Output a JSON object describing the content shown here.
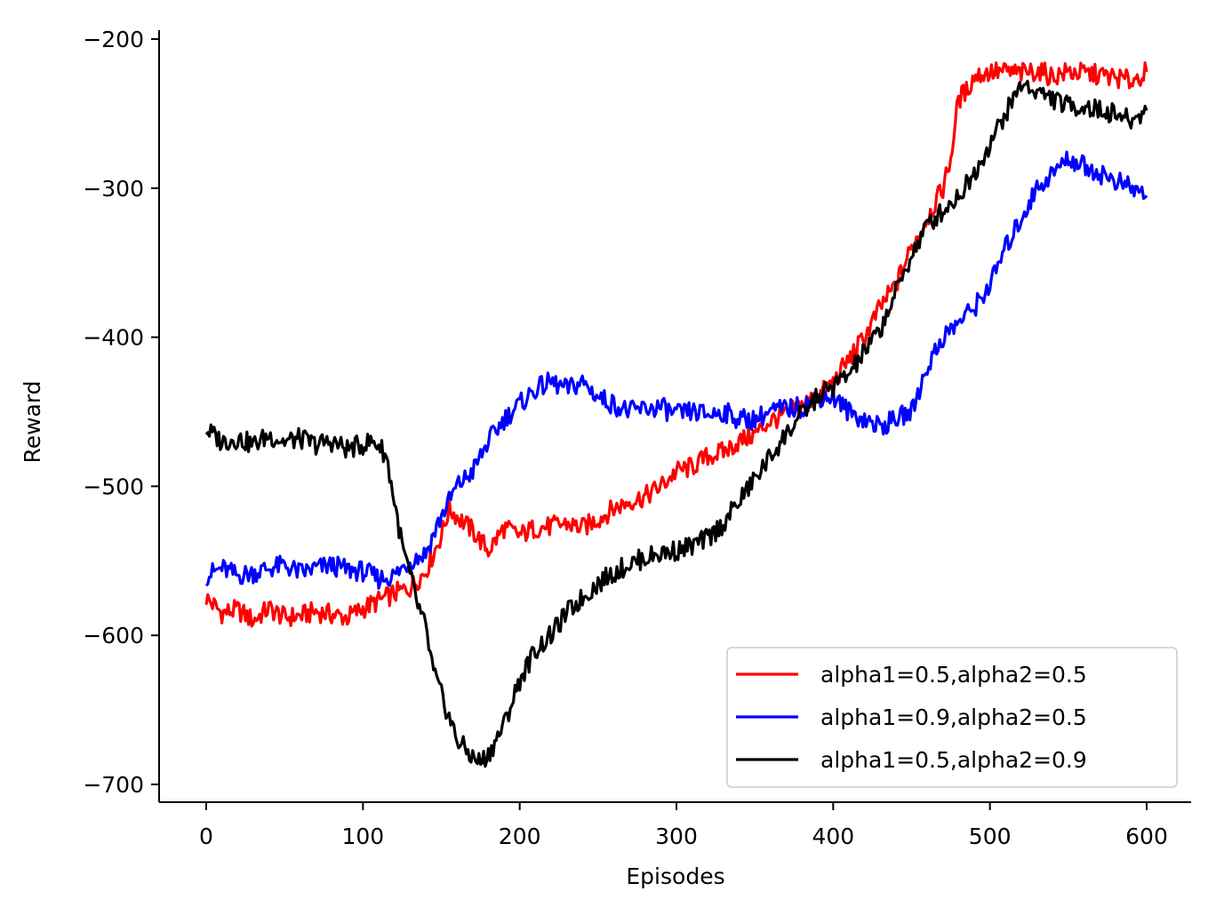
{
  "chart_data": {
    "type": "line",
    "title": "",
    "xlabel": "Episodes",
    "ylabel": "Reward",
    "xlim": [
      -30,
      630
    ],
    "ylim": [
      -712,
      -197
    ],
    "xticks": [
      0,
      100,
      200,
      300,
      400,
      500,
      600
    ],
    "yticks": [
      -200,
      -300,
      -400,
      -500,
      -600,
      -700
    ],
    "xtick_labels": [
      "0",
      "100",
      "200",
      "300",
      "400",
      "500",
      "600"
    ],
    "ytick_labels": [
      "−200",
      "−300",
      "−400",
      "−500",
      "−600",
      "−700"
    ],
    "grid": false,
    "legend_position": "bottom-right",
    "series": [
      {
        "name": "alpha1=0.5,alpha2=0.5",
        "color": "#ff0000",
        "x": [
          0,
          10,
          20,
          30,
          40,
          50,
          60,
          70,
          80,
          90,
          100,
          110,
          120,
          130,
          140,
          150,
          155,
          160,
          170,
          180,
          190,
          200,
          210,
          220,
          230,
          240,
          250,
          260,
          270,
          280,
          290,
          300,
          310,
          320,
          330,
          340,
          350,
          360,
          370,
          380,
          390,
          400,
          410,
          420,
          430,
          440,
          450,
          460,
          470,
          475,
          480,
          485,
          490,
          500,
          510,
          520,
          530,
          540,
          550,
          560,
          570,
          580,
          590,
          600
        ],
        "y": [
          -575,
          -585,
          -583,
          -590,
          -582,
          -588,
          -587,
          -584,
          -586,
          -588,
          -582,
          -577,
          -572,
          -568,
          -557,
          -533,
          -515,
          -520,
          -530,
          -543,
          -528,
          -533,
          -528,
          -527,
          -525,
          -528,
          -522,
          -515,
          -510,
          -507,
          -500,
          -490,
          -487,
          -480,
          -477,
          -470,
          -465,
          -456,
          -452,
          -445,
          -440,
          -430,
          -415,
          -400,
          -380,
          -365,
          -340,
          -320,
          -300,
          -280,
          -240,
          -235,
          -225,
          -222,
          -222,
          -223,
          -221,
          -225,
          -222,
          -223,
          -224,
          -226,
          -228,
          -222
        ]
      },
      {
        "name": "alpha1=0.9,alpha2=0.5",
        "color": "#0000ff",
        "x": [
          0,
          10,
          20,
          30,
          40,
          50,
          60,
          70,
          80,
          90,
          100,
          110,
          120,
          130,
          140,
          150,
          160,
          170,
          180,
          190,
          200,
          210,
          220,
          230,
          240,
          250,
          260,
          270,
          280,
          290,
          300,
          310,
          320,
          330,
          340,
          350,
          360,
          370,
          380,
          390,
          400,
          410,
          420,
          430,
          440,
          450,
          460,
          470,
          480,
          490,
          500,
          510,
          520,
          530,
          540,
          550,
          560,
          570,
          580,
          590,
          600
        ],
        "y": [
          -560,
          -555,
          -560,
          -558,
          -555,
          -553,
          -558,
          -555,
          -553,
          -556,
          -557,
          -562,
          -560,
          -550,
          -545,
          -520,
          -500,
          -490,
          -470,
          -455,
          -445,
          -435,
          -430,
          -435,
          -430,
          -440,
          -445,
          -450,
          -448,
          -447,
          -452,
          -450,
          -452,
          -450,
          -455,
          -455,
          -450,
          -448,
          -447,
          -440,
          -440,
          -450,
          -455,
          -460,
          -455,
          -450,
          -420,
          -400,
          -390,
          -380,
          -365,
          -340,
          -320,
          -300,
          -290,
          -280,
          -285,
          -290,
          -295,
          -300,
          -305
        ]
      },
      {
        "name": "alpha1=0.5,alpha2=0.9",
        "color": "#000000",
        "x": [
          0,
          10,
          20,
          30,
          40,
          50,
          60,
          70,
          80,
          90,
          100,
          105,
          110,
          115,
          120,
          125,
          130,
          135,
          140,
          145,
          150,
          160,
          170,
          175,
          180,
          190,
          200,
          210,
          220,
          230,
          240,
          250,
          260,
          270,
          280,
          290,
          300,
          310,
          320,
          330,
          340,
          350,
          360,
          370,
          380,
          390,
          400,
          410,
          420,
          430,
          440,
          450,
          460,
          470,
          480,
          490,
          500,
          510,
          520,
          530,
          540,
          550,
          560,
          570,
          580,
          590,
          600
        ],
        "y": [
          -462,
          -470,
          -468,
          -472,
          -466,
          -470,
          -468,
          -472,
          -470,
          -475,
          -472,
          -470,
          -472,
          -480,
          -510,
          -540,
          -560,
          -580,
          -595,
          -625,
          -640,
          -670,
          -682,
          -685,
          -680,
          -660,
          -630,
          -610,
          -600,
          -585,
          -575,
          -565,
          -558,
          -552,
          -548,
          -545,
          -543,
          -540,
          -535,
          -525,
          -510,
          -495,
          -480,
          -465,
          -452,
          -440,
          -433,
          -425,
          -410,
          -395,
          -370,
          -345,
          -325,
          -315,
          -305,
          -290,
          -270,
          -250,
          -230,
          -235,
          -240,
          -245,
          -245,
          -248,
          -250,
          -255,
          -248
        ]
      }
    ]
  }
}
